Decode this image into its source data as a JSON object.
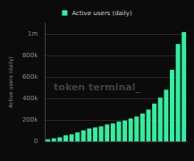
{
  "chart_data": {
    "type": "bar",
    "annotation": "token terminal_",
    "y_label": "Active users (daily)",
    "categories": [
      null,
      null,
      null,
      null,
      null,
      null,
      null,
      null,
      null,
      null,
      null,
      null,
      null,
      null,
      null,
      null,
      null,
      null,
      null,
      null,
      null,
      null,
      null,
      null
    ],
    "series": [
      {
        "name": "Active users (daily)",
        "color": "#2ef0a2",
        "values": [
          19000,
          28000,
          37000,
          56000,
          65000,
          83000,
          102000,
          120000,
          130000,
          139000,
          157000,
          167000,
          185000,
          194000,
          213000,
          231000,
          259000,
          296000,
          352000,
          407000,
          481000,
          667000,
          907000,
          1018000
        ]
      }
    ],
    "ylim": [
      0,
      1100000
    ],
    "yticks": [
      0,
      {
        "value": 200000,
        "label": "200k"
      },
      {
        "value": 400000,
        "label": "400k"
      },
      {
        "value": 600000,
        "label": "600k"
      },
      {
        "value": 800000,
        "label": "800k"
      },
      {
        "value": 1000000,
        "label": "1m"
      }
    ],
    "grid": true,
    "legend": "top",
    "tick_labels": "y"
  }
}
